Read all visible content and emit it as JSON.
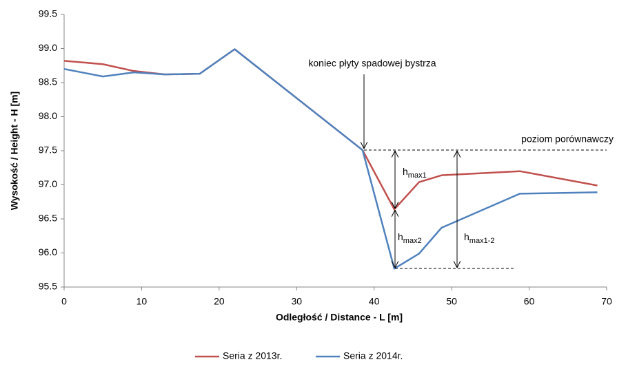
{
  "chart_data": {
    "type": "line",
    "x_label": "Odległość / Distance - L [m]",
    "y_label": "Wysokość / Height - H [m]",
    "xlim": [
      0,
      70
    ],
    "xticks": [
      0,
      10,
      20,
      30,
      40,
      50,
      60,
      70
    ],
    "ylim": [
      95.5,
      99.5
    ],
    "yticks": [
      95.5,
      {
        "value": 96,
        "label": "96.0"
      },
      96.5,
      {
        "value": 97,
        "label": "97.0"
      },
      97.5,
      {
        "value": 98,
        "label": "98.0"
      },
      98.5,
      {
        "value": 99,
        "label": "99.0"
      },
      99.5
    ],
    "legend": "bottom",
    "series": [
      {
        "name": "Seria z 2013r.",
        "color": "#c0504d",
        "x": [
          0,
          5,
          9,
          13,
          17.5,
          22,
          38.5,
          42.6,
          45.8,
          48.7,
          58.8,
          68.8
        ],
        "values": [
          98.82,
          98.77,
          98.67,
          98.62,
          98.63,
          98.99,
          97.51,
          96.64,
          97.04,
          97.14,
          97.2,
          96.99
        ]
      },
      {
        "name": "Seria z 2014r.",
        "color": "#4f81bd",
        "x": [
          0,
          5,
          9,
          13,
          17.5,
          22,
          38.5,
          42.6,
          45.8,
          48.7,
          58.8,
          68.8
        ],
        "values": [
          98.7,
          98.59,
          98.65,
          98.62,
          98.63,
          98.99,
          97.51,
          95.77,
          95.99,
          96.37,
          96.87,
          96.89
        ]
      }
    ],
    "annotations": [
      {
        "text": "koniec płyty spadowej bystrza"
      },
      {
        "text": "poziom porównawczy"
      },
      {
        "text": "h",
        "sub": "max1"
      },
      {
        "text": "h",
        "sub": "max2"
      },
      {
        "text": "h",
        "sub": "max1-2"
      }
    ]
  }
}
